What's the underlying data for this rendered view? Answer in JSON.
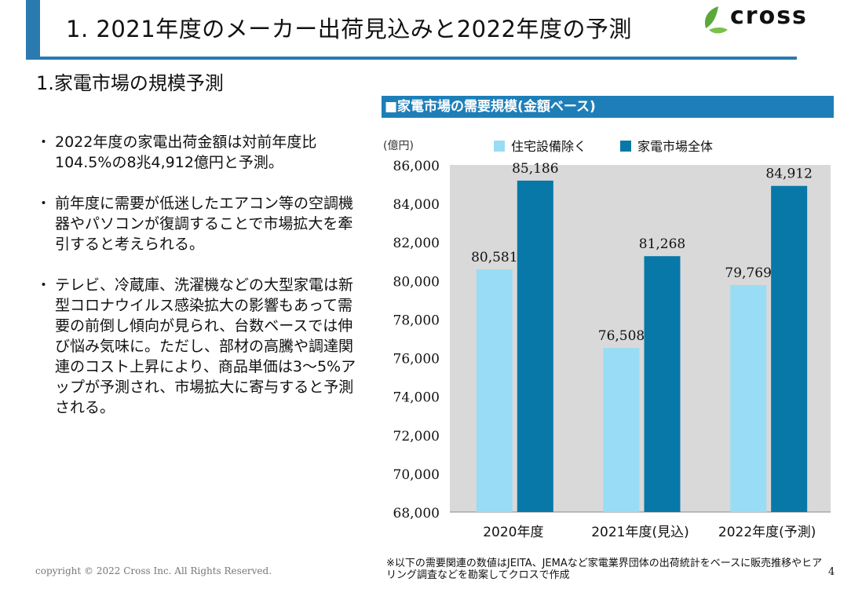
{
  "header": {
    "title": "1. 2021年度のメーカー出荷見込みと2022年度の予測",
    "logo_text": "cross"
  },
  "section": {
    "title": "1.家電市場の規模予測"
  },
  "bullets": [
    "2022年度の家電出荷金額は対前年度比104.5%の8兆4,912億円と予測。",
    "前年度に需要が低迷したエアコン等の空調機器やパソコンが復調することで市場拡大を牽引すると考えられる。",
    "テレビ、冷蔵庫、洗濯機などの大型家電は新型コロナウイルス感染拡大の影響もあって需要の前倒し傾向が見られ、台数ベースでは伸び悩み気味に。ただし、部材の高騰や調達関連のコスト上昇により、商品単価は3～5%アップが予測され、市場拡大に寄与すると予測される。"
  ],
  "chart_header": "■家電市場の需要規模(金額ベース)",
  "chart_data": {
    "type": "bar",
    "title": "家電市場の需要規模(金額ベース)",
    "ylabel": "(億円)",
    "xlabel": "",
    "categories": [
      "2020年度",
      "2021年度(見込)",
      "2022年度(予測)"
    ],
    "series": [
      {
        "name": "住宅設備除く",
        "color": "#99dcf5",
        "values": [
          80581,
          76508,
          79769
        ]
      },
      {
        "name": "家電市場全体",
        "color": "#0878a8",
        "values": [
          85186,
          81268,
          84912
        ]
      }
    ],
    "ylim": [
      68000,
      86000
    ],
    "yticks": [
      68000,
      70000,
      72000,
      74000,
      76000,
      78000,
      80000,
      82000,
      84000,
      86000
    ],
    "legend": "top",
    "grid": false
  },
  "footer": {
    "copyright": "copyright © 2022 Cross Inc. All Rights Reserved.",
    "note": "※以下の需要関連の数値はJEITA、JEMAなど家電業界団体の出荷統計をベースに販売推移やヒアリング調査などを勘案してクロスで作成",
    "page": "4"
  }
}
